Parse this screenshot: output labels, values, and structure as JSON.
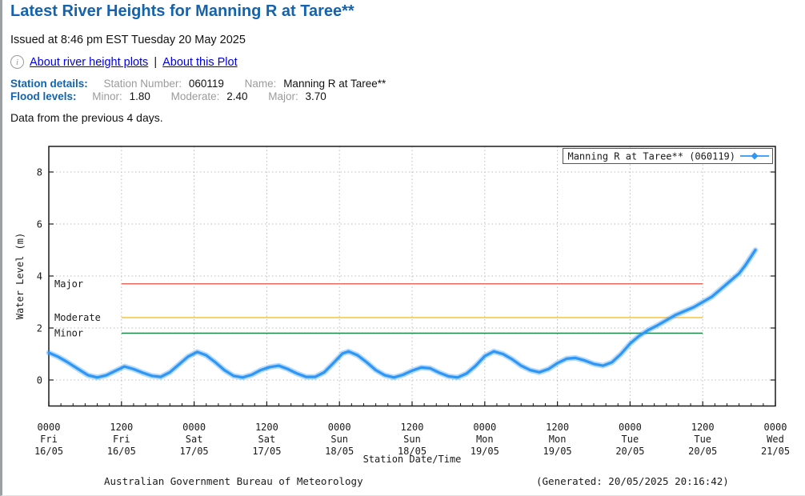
{
  "header": {
    "title": "Latest River Heights for Manning R at Taree**",
    "issued": "Issued at 8:46 pm EST Tuesday 20 May 2025",
    "info_icon_glyph": "i",
    "link_about_plots": "About river height plots",
    "link_separator": "|",
    "link_about_this_plot": "About this Plot"
  },
  "station": {
    "details_label": "Station details:",
    "number_label": "Station Number:",
    "number_value": "060119",
    "name_label": "Name:",
    "name_value": "Manning R at Taree**"
  },
  "flood": {
    "label": "Flood levels:",
    "minor_label": "Minor:",
    "minor_value": "1.80",
    "moderate_label": "Moderate:",
    "moderate_value": "2.40",
    "major_label": "Major:",
    "major_value": "3.70"
  },
  "note": "Data from the previous 4 days.",
  "footer": {
    "left": "Australian Government Bureau of Meteorology",
    "right": "(Generated: 20/05/2025 20:16:42)"
  },
  "chart_data": {
    "type": "line",
    "title": "",
    "xlabel": "Station Date/Time",
    "ylabel": "Water Level (m)",
    "ylim": [
      -1,
      9
    ],
    "yticks": [
      0,
      2,
      4,
      6,
      8
    ],
    "x_hours_range": [
      0,
      120
    ],
    "minor_tick_hours": 2,
    "grid": true,
    "legend_position": "top-right",
    "legend": {
      "label": "Manning R at Taree** (060119)"
    },
    "xticks": [
      {
        "hour": 0,
        "time": "0000",
        "day": "Fri",
        "date": "16/05"
      },
      {
        "hour": 12,
        "time": "1200",
        "day": "Fri",
        "date": "16/05"
      },
      {
        "hour": 24,
        "time": "0000",
        "day": "Sat",
        "date": "17/05"
      },
      {
        "hour": 36,
        "time": "1200",
        "day": "Sat",
        "date": "17/05"
      },
      {
        "hour": 48,
        "time": "0000",
        "day": "Sun",
        "date": "18/05"
      },
      {
        "hour": 60,
        "time": "1200",
        "day": "Sun",
        "date": "18/05"
      },
      {
        "hour": 72,
        "time": "0000",
        "day": "Mon",
        "date": "19/05"
      },
      {
        "hour": 84,
        "time": "1200",
        "day": "Mon",
        "date": "19/05"
      },
      {
        "hour": 96,
        "time": "0000",
        "day": "Tue",
        "date": "20/05"
      },
      {
        "hour": 108,
        "time": "1200",
        "day": "Tue",
        "date": "20/05"
      },
      {
        "hour": 120,
        "time": "0000",
        "day": "Wed",
        "date": "21/05"
      }
    ],
    "flood_lines": [
      {
        "name": "Major",
        "level": 3.7,
        "color": "#ee685d"
      },
      {
        "name": "Moderate",
        "level": 2.4,
        "color": "#f5c33c"
      },
      {
        "name": "Minor",
        "level": 1.8,
        "color": "#1b8549"
      }
    ],
    "flood_line_span_hours": [
      12,
      108
    ],
    "series": [
      {
        "name": "Manning R at Taree** (060119)",
        "color": "#2e96f5",
        "points": [
          [
            0,
            1.05
          ],
          [
            1.5,
            0.9
          ],
          [
            3,
            0.7
          ],
          [
            5,
            0.4
          ],
          [
            6.5,
            0.18
          ],
          [
            8,
            0.1
          ],
          [
            9.5,
            0.18
          ],
          [
            11,
            0.35
          ],
          [
            12.5,
            0.52
          ],
          [
            14,
            0.42
          ],
          [
            15.5,
            0.28
          ],
          [
            17,
            0.16
          ],
          [
            18.5,
            0.12
          ],
          [
            20,
            0.3
          ],
          [
            21.5,
            0.6
          ],
          [
            23,
            0.9
          ],
          [
            24.5,
            1.08
          ],
          [
            26,
            0.95
          ],
          [
            27.5,
            0.68
          ],
          [
            29,
            0.38
          ],
          [
            30.5,
            0.16
          ],
          [
            32,
            0.1
          ],
          [
            33.5,
            0.2
          ],
          [
            35,
            0.38
          ],
          [
            36.5,
            0.5
          ],
          [
            38,
            0.55
          ],
          [
            39.5,
            0.42
          ],
          [
            41,
            0.25
          ],
          [
            42.5,
            0.12
          ],
          [
            44,
            0.12
          ],
          [
            45.5,
            0.3
          ],
          [
            47,
            0.65
          ],
          [
            48.5,
            1.02
          ],
          [
            49.5,
            1.1
          ],
          [
            51,
            0.95
          ],
          [
            52.5,
            0.68
          ],
          [
            54,
            0.38
          ],
          [
            55.5,
            0.18
          ],
          [
            57,
            0.1
          ],
          [
            58.5,
            0.2
          ],
          [
            60,
            0.36
          ],
          [
            61.5,
            0.48
          ],
          [
            63,
            0.45
          ],
          [
            64.5,
            0.28
          ],
          [
            66,
            0.14
          ],
          [
            67.5,
            0.1
          ],
          [
            69,
            0.25
          ],
          [
            70.5,
            0.55
          ],
          [
            72,
            0.92
          ],
          [
            73.5,
            1.1
          ],
          [
            75,
            1.0
          ],
          [
            76.5,
            0.8
          ],
          [
            78,
            0.55
          ],
          [
            79.5,
            0.38
          ],
          [
            81,
            0.3
          ],
          [
            82.5,
            0.42
          ],
          [
            84,
            0.65
          ],
          [
            85.5,
            0.82
          ],
          [
            87,
            0.85
          ],
          [
            88.5,
            0.75
          ],
          [
            90,
            0.62
          ],
          [
            91.5,
            0.55
          ],
          [
            93,
            0.68
          ],
          [
            94.5,
            1.0
          ],
          [
            96,
            1.4
          ],
          [
            97.5,
            1.7
          ],
          [
            99,
            1.92
          ],
          [
            100.5,
            2.1
          ],
          [
            102,
            2.3
          ],
          [
            103.5,
            2.5
          ],
          [
            105,
            2.65
          ],
          [
            106.5,
            2.8
          ],
          [
            108,
            3.0
          ],
          [
            109.5,
            3.2
          ],
          [
            111,
            3.5
          ],
          [
            112.5,
            3.8
          ],
          [
            114,
            4.1
          ],
          [
            115,
            4.4
          ],
          [
            116,
            4.75
          ],
          [
            116.7,
            5.0
          ]
        ]
      }
    ]
  }
}
